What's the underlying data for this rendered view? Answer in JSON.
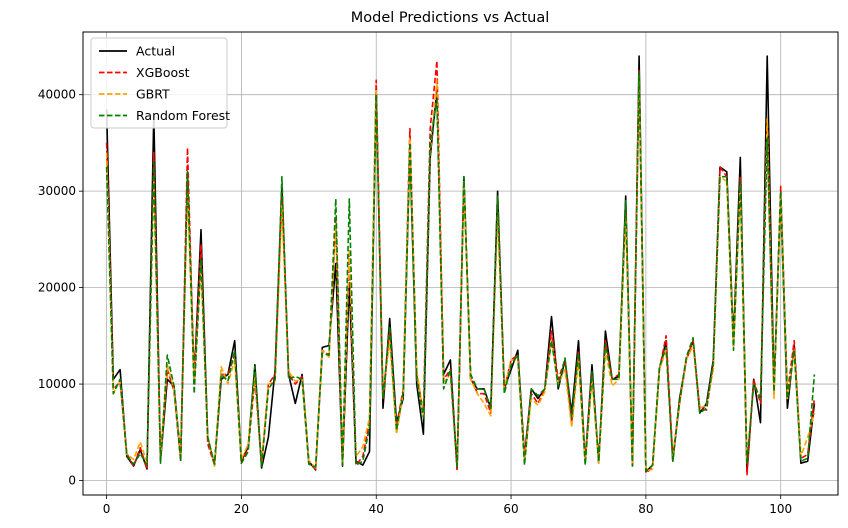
{
  "chart_data": {
    "type": "line",
    "title": "Model Predictions vs Actual",
    "xlabel": "",
    "ylabel": "",
    "xlim": [
      -3.5,
      108.5
    ],
    "ylim": [
      -1500,
      46500
    ],
    "xticks": [
      0,
      20,
      40,
      60,
      80,
      100
    ],
    "yticks": [
      0,
      10000,
      20000,
      30000,
      40000
    ],
    "grid": true,
    "legend_position": "top-left",
    "x": [
      0,
      1,
      2,
      3,
      4,
      5,
      6,
      7,
      8,
      9,
      10,
      11,
      12,
      13,
      14,
      15,
      16,
      17,
      18,
      19,
      20,
      21,
      22,
      23,
      24,
      25,
      26,
      27,
      28,
      29,
      30,
      31,
      32,
      33,
      34,
      35,
      36,
      37,
      38,
      39,
      40,
      41,
      42,
      43,
      44,
      45,
      46,
      47,
      48,
      49,
      50,
      51,
      52,
      53,
      54,
      55,
      56,
      57,
      58,
      59,
      60,
      61,
      62,
      63,
      64,
      65,
      66,
      67,
      68,
      69,
      70,
      71,
      72,
      73,
      74,
      75,
      76,
      77,
      78,
      79,
      80,
      81,
      82,
      83,
      84,
      85,
      86,
      87,
      88,
      89,
      90,
      91,
      92,
      93,
      94,
      95,
      96,
      97,
      98,
      99,
      100,
      101,
      102,
      103,
      104,
      105
    ],
    "series": [
      {
        "name": "Actual",
        "color": "#000000",
        "dash": "solid",
        "values": [
          38500,
          10500,
          11500,
          2500,
          1500,
          3200,
          1200,
          38000,
          2000,
          10500,
          9800,
          2500,
          32000,
          10500,
          26000,
          4500,
          1600,
          10500,
          11000,
          14500,
          2000,
          3500,
          12000,
          1300,
          4500,
          11500,
          30500,
          11000,
          8000,
          11000,
          2000,
          1100,
          13800,
          14000,
          22500,
          1500,
          20500,
          2000,
          1600,
          3000,
          40500,
          7500,
          16800,
          6000,
          8500,
          34500,
          10000,
          4800,
          33500,
          40500,
          11000,
          12500,
          1200,
          31500,
          10500,
          9500,
          9500,
          7500,
          30000,
          9500,
          11500,
          13500,
          2500,
          9500,
          8500,
          9500,
          17000,
          9500,
          12500,
          7000,
          14500,
          2000,
          12000,
          1800,
          15500,
          10500,
          10800,
          29500,
          1600,
          44000,
          900,
          1600,
          11500,
          14500,
          2000,
          8500,
          12500,
          14500,
          7000,
          8000,
          12500,
          32500,
          32000,
          14500,
          33500,
          900,
          10500,
          6000,
          44000,
          9500,
          29500,
          7500,
          14000,
          1800,
          2000,
          8000
        ]
      },
      {
        "name": "XGBoost",
        "color": "#ff0000",
        "dash": "dashed",
        "values": [
          35000,
          9500,
          10200,
          2800,
          1500,
          3400,
          1200,
          34000,
          2200,
          11500,
          9300,
          2000,
          34500,
          10000,
          24500,
          3800,
          1600,
          11000,
          11000,
          13000,
          1800,
          3300,
          10500,
          1600,
          10000,
          11000,
          29500,
          11000,
          10000,
          10800,
          1800,
          1200,
          13500,
          13000,
          27000,
          1600,
          23500,
          1600,
          2500,
          6000,
          41500,
          8500,
          15500,
          5500,
          9500,
          36500,
          11000,
          7000,
          36500,
          43500,
          10500,
          11500,
          1000,
          31000,
          11000,
          9000,
          9000,
          7000,
          29000,
          9500,
          12500,
          13000,
          2500,
          9000,
          8000,
          9500,
          15500,
          10500,
          12500,
          6000,
          13500,
          2000,
          11000,
          2000,
          14500,
          10500,
          11000,
          28000,
          1500,
          42500,
          800,
          1300,
          11500,
          15000,
          2500,
          8000,
          12500,
          14500,
          7500,
          7300,
          12000,
          32500,
          31500,
          14000,
          31500,
          600,
          10500,
          8000,
          36500,
          9000,
          30500,
          9000,
          14500,
          2300,
          2700,
          8500
        ]
      },
      {
        "name": "GBRT",
        "color": "#ffa500",
        "dash": "dashed",
        "values": [
          34000,
          9000,
          10500,
          2700,
          2200,
          4000,
          1800,
          31000,
          2400,
          12000,
          9500,
          2500,
          30000,
          10300,
          22000,
          4500,
          1500,
          11800,
          10000,
          12500,
          2200,
          3800,
          10800,
          1900,
          10000,
          10200,
          28500,
          11300,
          10300,
          10500,
          2100,
          1300,
          13500,
          12800,
          26500,
          1700,
          24000,
          2500,
          3500,
          6500,
          40500,
          8800,
          14500,
          4800,
          9000,
          35500,
          11500,
          6800,
          34000,
          41500,
          10200,
          11000,
          1500,
          31000,
          10500,
          9000,
          8000,
          6700,
          27500,
          9500,
          12500,
          12500,
          2000,
          8500,
          7800,
          9200,
          14500,
          10000,
          11500,
          5500,
          12500,
          1800,
          10500,
          1800,
          13500,
          9800,
          10500,
          27500,
          1700,
          42000,
          1000,
          1200,
          11500,
          13500,
          2500,
          8000,
          12500,
          14000,
          7500,
          7800,
          11500,
          31500,
          31000,
          13800,
          30500,
          2000,
          10000,
          8500,
          37500,
          8500,
          29500,
          8500,
          13500,
          2500,
          4500,
          7000
        ]
      },
      {
        "name": "Random Forest",
        "color": "#008000",
        "dash": "dashed",
        "values": [
          32500,
          9000,
          10500,
          2600,
          1700,
          2800,
          1600,
          33000,
          1800,
          13000,
          9800,
          2000,
          32000,
          9000,
          23000,
          4500,
          1700,
          11000,
          10300,
          13500,
          1800,
          3000,
          11800,
          1400,
          9500,
          10500,
          31500,
          10500,
          10800,
          10500,
          1700,
          1400,
          13200,
          13000,
          29200,
          1600,
          29200,
          1600,
          2000,
          5500,
          40000,
          8500,
          16000,
          5200,
          9200,
          35000,
          10500,
          6500,
          35000,
          39500,
          9500,
          11500,
          1400,
          31500,
          11000,
          9500,
          9500,
          7500,
          29500,
          9000,
          12000,
          13000,
          1600,
          9500,
          8800,
          9500,
          14500,
          9800,
          12700,
          6500,
          13200,
          1600,
          11300,
          2000,
          14200,
          10500,
          10500,
          29000,
          1500,
          42300,
          1000,
          1600,
          11800,
          13800,
          2000,
          8200,
          12800,
          14800,
          7000,
          7500,
          12300,
          31500,
          31500,
          13500,
          31000,
          1800,
          10000,
          8500,
          35500,
          9200,
          30000,
          8500,
          13500,
          2000,
          2300,
          11000
        ]
      }
    ]
  }
}
